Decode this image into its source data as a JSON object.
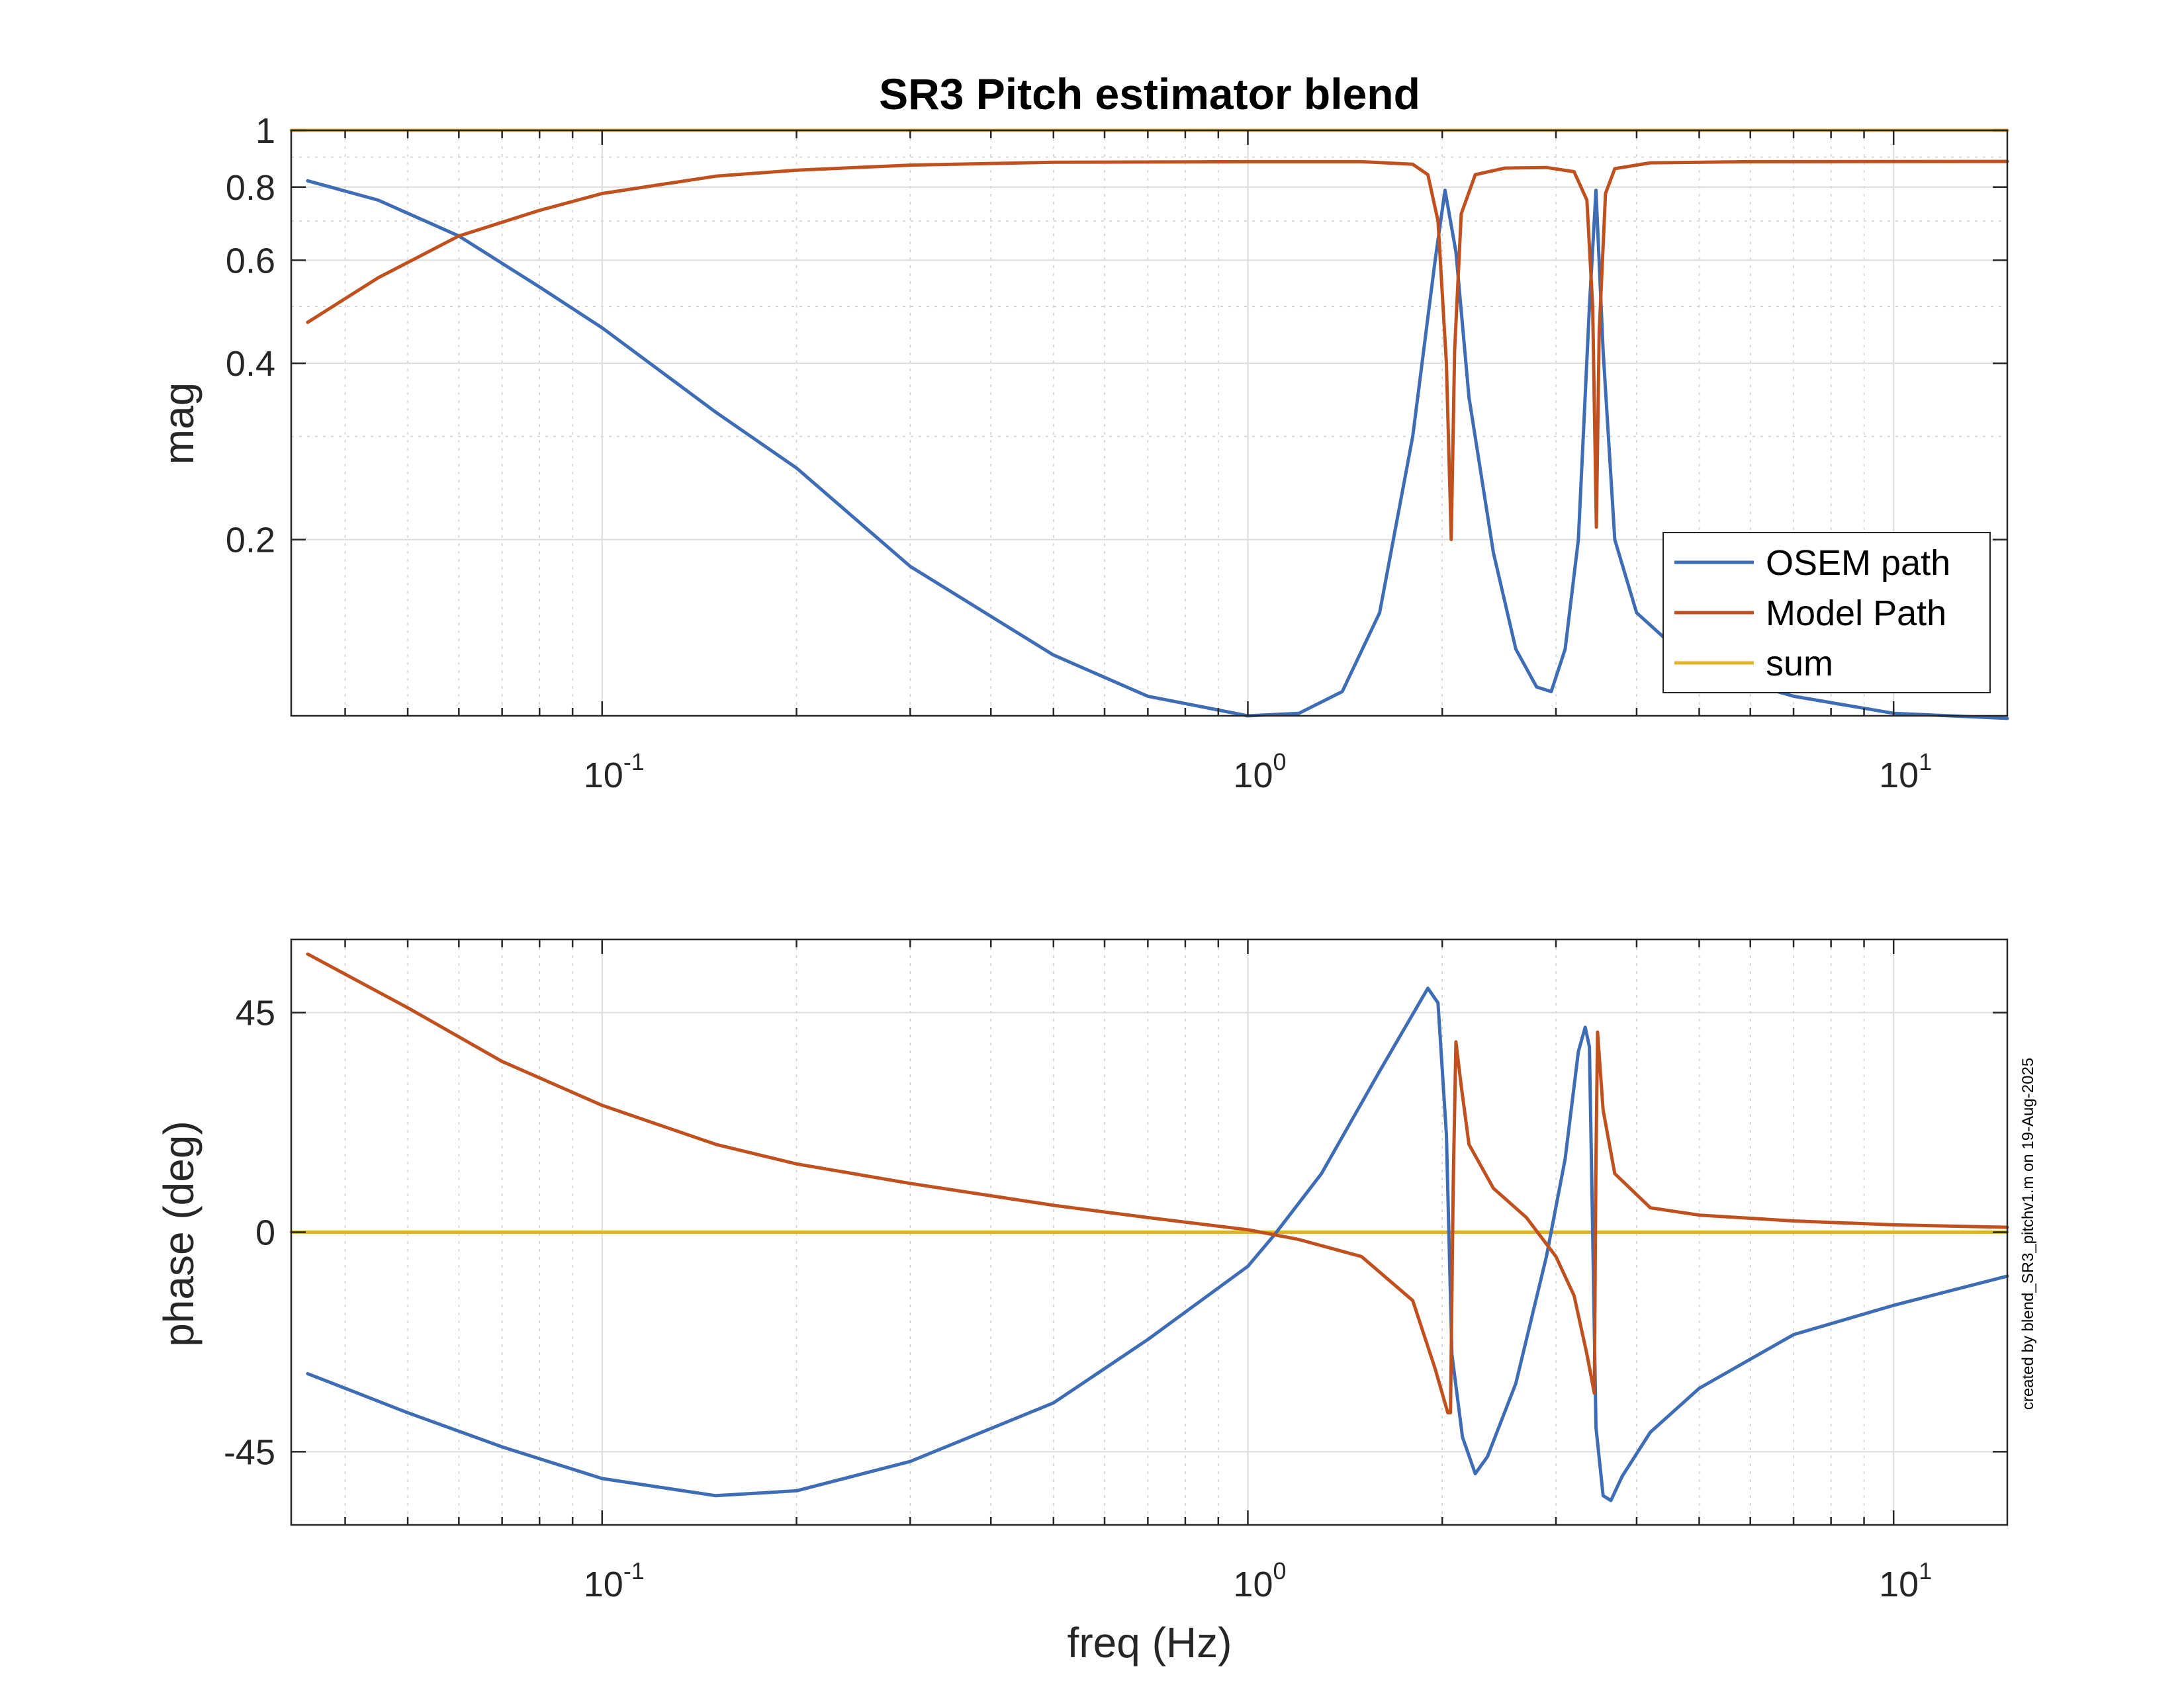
{
  "chart_data": [
    {
      "type": "line",
      "title": "SR3 Pitch estimator blend",
      "xlabel": "",
      "ylabel": "mag",
      "xscale": "log",
      "yscale": "log",
      "xlim": [
        0.033,
        15
      ],
      "ylim": [
        0.1,
        1.0
      ],
      "grid": true,
      "legend_placement": "bottom-right",
      "x_ticks": [
        0.1,
        1,
        10
      ],
      "x_tick_labels": [
        {
          "base": "10",
          "exp": "-1"
        },
        {
          "base": "10",
          "exp": "0"
        },
        {
          "base": "10",
          "exp": "1"
        }
      ],
      "y_ticks": [
        0.2,
        0.4,
        0.6,
        0.8,
        1
      ],
      "y_tick_labels": [
        "0.2",
        "0.4",
        "0.6",
        "0.8",
        "1"
      ],
      "series": [
        {
          "name": "OSEM path",
          "color": "#3E6DB5",
          "points": [
            [
              0.035,
              0.82
            ],
            [
              0.045,
              0.76
            ],
            [
              0.06,
              0.66
            ],
            [
              0.08,
              0.54
            ],
            [
              0.1,
              0.46
            ],
            [
              0.15,
              0.33
            ],
            [
              0.2,
              0.265
            ],
            [
              0.3,
              0.18
            ],
            [
              0.5,
              0.127
            ],
            [
              0.7,
              0.108
            ],
            [
              1.0,
              0.1
            ],
            [
              1.2,
              0.101
            ],
            [
              1.4,
              0.11
            ],
            [
              1.6,
              0.15
            ],
            [
              1.8,
              0.3
            ],
            [
              1.95,
              0.6
            ],
            [
              2.02,
              0.79
            ],
            [
              2.1,
              0.62
            ],
            [
              2.2,
              0.35
            ],
            [
              2.4,
              0.19
            ],
            [
              2.6,
              0.13
            ],
            [
              2.8,
              0.112
            ],
            [
              2.95,
              0.11
            ],
            [
              3.1,
              0.13
            ],
            [
              3.25,
              0.2
            ],
            [
              3.38,
              0.5
            ],
            [
              3.46,
              0.79
            ],
            [
              3.55,
              0.42
            ],
            [
              3.7,
              0.2
            ],
            [
              4.0,
              0.15
            ],
            [
              5.0,
              0.12
            ],
            [
              7.0,
              0.108
            ],
            [
              10.0,
              0.101
            ],
            [
              15.0,
              0.099
            ]
          ]
        },
        {
          "name": "Model Path",
          "color": "#C0511E",
          "points": [
            [
              0.035,
              0.47
            ],
            [
              0.045,
              0.56
            ],
            [
              0.06,
              0.66
            ],
            [
              0.08,
              0.73
            ],
            [
              0.1,
              0.78
            ],
            [
              0.15,
              0.835
            ],
            [
              0.2,
              0.855
            ],
            [
              0.3,
              0.872
            ],
            [
              0.5,
              0.882
            ],
            [
              1.0,
              0.884
            ],
            [
              1.5,
              0.884
            ],
            [
              1.8,
              0.875
            ],
            [
              1.9,
              0.84
            ],
            [
              1.97,
              0.7
            ],
            [
              2.03,
              0.4
            ],
            [
              2.065,
              0.2
            ],
            [
              2.09,
              0.42
            ],
            [
              2.14,
              0.72
            ],
            [
              2.25,
              0.84
            ],
            [
              2.5,
              0.862
            ],
            [
              2.9,
              0.864
            ],
            [
              3.2,
              0.85
            ],
            [
              3.35,
              0.76
            ],
            [
              3.42,
              0.5
            ],
            [
              3.465,
              0.21
            ],
            [
              3.5,
              0.45
            ],
            [
              3.58,
              0.78
            ],
            [
              3.7,
              0.86
            ],
            [
              4.2,
              0.88
            ],
            [
              6.0,
              0.884
            ],
            [
              15.0,
              0.885
            ]
          ]
        },
        {
          "name": "sum",
          "color": "#E0B030",
          "points": [
            [
              0.033,
              1.0
            ],
            [
              15.0,
              1.0
            ]
          ]
        }
      ]
    },
    {
      "type": "line",
      "title": "",
      "xlabel": "freq (Hz)",
      "ylabel": "phase (deg)",
      "xscale": "log",
      "yscale": "linear",
      "xlim": [
        0.033,
        15
      ],
      "ylim": [
        -60,
        60
      ],
      "grid": true,
      "x_ticks": [
        0.1,
        1,
        10
      ],
      "x_tick_labels": [
        {
          "base": "10",
          "exp": "-1"
        },
        {
          "base": "10",
          "exp": "0"
        },
        {
          "base": "10",
          "exp": "1"
        }
      ],
      "y_ticks": [
        -45,
        0,
        45
      ],
      "y_tick_labels": [
        "-45",
        "0",
        "45"
      ],
      "series": [
        {
          "name": "OSEM path",
          "color": "#3E6DB5",
          "points": [
            [
              0.035,
              -29
            ],
            [
              0.05,
              -37
            ],
            [
              0.07,
              -44
            ],
            [
              0.1,
              -50.5
            ],
            [
              0.15,
              -54
            ],
            [
              0.2,
              -53
            ],
            [
              0.3,
              -47
            ],
            [
              0.5,
              -35
            ],
            [
              0.7,
              -22
            ],
            [
              1.0,
              -7
            ],
            [
              1.1,
              -0.5
            ],
            [
              1.3,
              12
            ],
            [
              1.6,
              33
            ],
            [
              1.9,
              50
            ],
            [
              1.97,
              47
            ],
            [
              2.03,
              20
            ],
            [
              2.07,
              -25
            ],
            [
              2.15,
              -42
            ],
            [
              2.25,
              -49.5
            ],
            [
              2.35,
              -46
            ],
            [
              2.6,
              -31
            ],
            [
              2.9,
              -5
            ],
            [
              3.1,
              15
            ],
            [
              3.25,
              37
            ],
            [
              3.33,
              42
            ],
            [
              3.38,
              38
            ],
            [
              3.42,
              0
            ],
            [
              3.46,
              -40
            ],
            [
              3.55,
              -54
            ],
            [
              3.65,
              -55
            ],
            [
              3.8,
              -50
            ],
            [
              4.2,
              -41
            ],
            [
              5.0,
              -32
            ],
            [
              7.0,
              -21
            ],
            [
              10.0,
              -15
            ],
            [
              15.0,
              -9
            ]
          ]
        },
        {
          "name": "Model Path",
          "color": "#C0511E",
          "points": [
            [
              0.035,
              57
            ],
            [
              0.05,
              46
            ],
            [
              0.07,
              35
            ],
            [
              0.1,
              26
            ],
            [
              0.15,
              18
            ],
            [
              0.2,
              14
            ],
            [
              0.3,
              10
            ],
            [
              0.5,
              5.5
            ],
            [
              0.7,
              3
            ],
            [
              1.0,
              0.5
            ],
            [
              1.2,
              -1.5
            ],
            [
              1.5,
              -5
            ],
            [
              1.8,
              -14
            ],
            [
              1.95,
              -28
            ],
            [
              2.04,
              -37
            ],
            [
              2.06,
              -37
            ],
            [
              2.08,
              10
            ],
            [
              2.1,
              39
            ],
            [
              2.14,
              30
            ],
            [
              2.2,
              18
            ],
            [
              2.4,
              9
            ],
            [
              2.7,
              3
            ],
            [
              3.0,
              -5
            ],
            [
              3.2,
              -13
            ],
            [
              3.35,
              -25
            ],
            [
              3.44,
              -33
            ],
            [
              3.46,
              15
            ],
            [
              3.48,
              41
            ],
            [
              3.55,
              25
            ],
            [
              3.7,
              12
            ],
            [
              4.2,
              5
            ],
            [
              5.0,
              3.5
            ],
            [
              7.0,
              2.3
            ],
            [
              10.0,
              1.5
            ],
            [
              15.0,
              1.0
            ]
          ]
        },
        {
          "name": "sum",
          "color": "#E0B030",
          "points": [
            [
              0.033,
              0
            ],
            [
              15.0,
              0
            ]
          ]
        }
      ]
    }
  ],
  "credit_text": "created by blend_SR3_pitchv1.m on 19-Aug-2025"
}
